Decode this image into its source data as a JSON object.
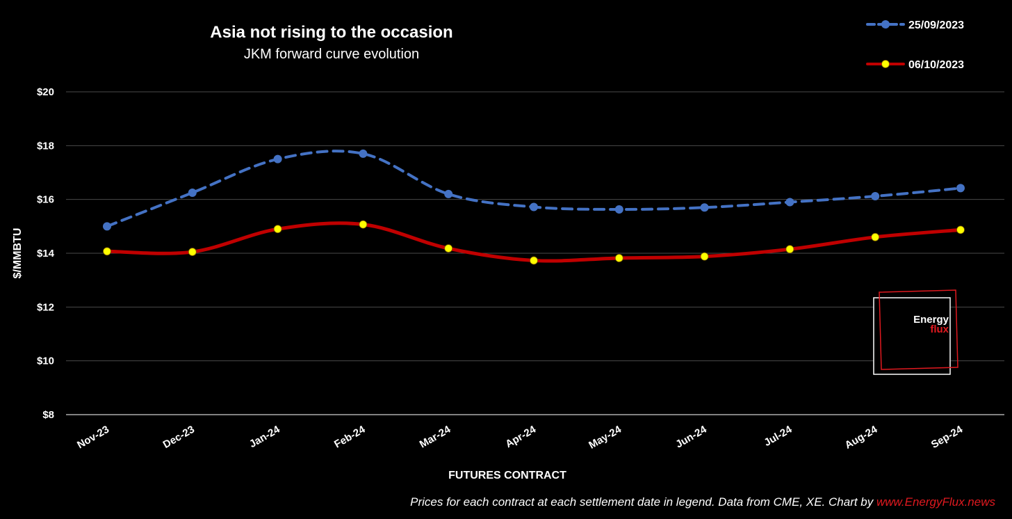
{
  "chart_data": {
    "type": "line",
    "title": "Asia not rising to the occasion",
    "subtitle": "JKM forward curve evolution",
    "xlabel": "FUTURES CONTRACT",
    "ylabel": "$/MMBTU",
    "categories": [
      "Nov-23",
      "Dec-23",
      "Jan-24",
      "Feb-24",
      "Mar-24",
      "Apr-24",
      "May-24",
      "Jun-24",
      "Jul-24",
      "Aug-24",
      "Sep-24"
    ],
    "y_ticks": [
      "$8",
      "$10",
      "$12",
      "$14",
      "$16",
      "$18",
      "$20"
    ],
    "ylim": [
      8,
      20
    ],
    "grid": true,
    "legend_position": "top-right",
    "series": [
      {
        "name": "25/09/2023",
        "color": "#4472c4",
        "marker_color": "#4472c4",
        "style": "dashed",
        "values": [
          15.0,
          16.25,
          17.5,
          17.7,
          16.2,
          15.72,
          15.63,
          15.7,
          15.9,
          16.12,
          16.42
        ]
      },
      {
        "name": "06/10/2023",
        "color": "#c00000",
        "marker_color": "#ffff00",
        "style": "solid",
        "values": [
          14.07,
          14.05,
          14.9,
          15.07,
          14.18,
          13.73,
          13.82,
          13.88,
          14.15,
          14.6,
          14.87
        ]
      }
    ]
  },
  "logo": {
    "line1": "Energy",
    "line2": "flux"
  },
  "source": {
    "text": "Prices for each contract at each settlement date in legend. Data from CME, XE. Chart by ",
    "link": "www.EnergyFlux.news"
  }
}
